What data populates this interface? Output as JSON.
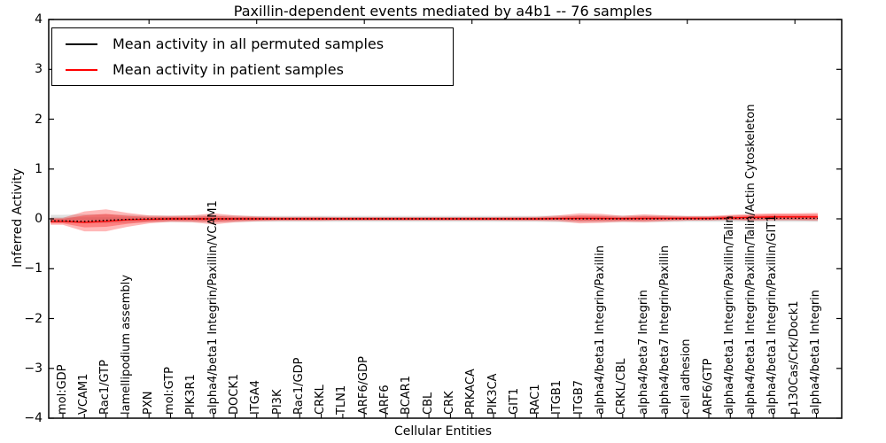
{
  "title": "Paxillin-dependent events mediated by a4b1 -- 76 samples",
  "axes": {
    "ylabel": "Inferred Activity",
    "xlabel": "Cellular Entities",
    "ylim": [
      -4,
      4
    ],
    "yticks": [
      {
        "label": "4",
        "v": 4
      },
      {
        "label": "3",
        "v": 3
      },
      {
        "label": "2",
        "v": 2
      },
      {
        "label": "1",
        "v": 1
      },
      {
        "label": "0",
        "v": 0
      },
      {
        "label": "−1",
        "v": -1
      },
      {
        "label": "−2",
        "v": -2
      },
      {
        "label": "−3",
        "v": -3
      },
      {
        "label": "−4",
        "v": -4
      }
    ]
  },
  "legend": {
    "items": [
      {
        "label": "Mean activity in all permuted samples",
        "color": "#000000"
      },
      {
        "label": "Mean activity in patient samples",
        "color": "#ff0000"
      }
    ]
  },
  "colors": {
    "permuted_line": "#000000",
    "patient_line": "#ff0000",
    "patient_band": "#ff0000",
    "permuted_band": "#bbbbbb",
    "spine": "#000000"
  },
  "chart_data": {
    "type": "line",
    "title": "Paxillin-dependent events mediated by a4b1 -- 76 samples",
    "xlabel": "Cellular Entities",
    "ylabel": "Inferred Activity",
    "ylim": [
      -4,
      4
    ],
    "legend_position": "upper left",
    "categories": [
      "mol:GDP",
      "VCAM1",
      "Rac1/GTP",
      "lamellipodium assembly",
      "PXN",
      "mol:GTP",
      "PIK3R1",
      "alpha4/beta1 Integrin/Paxillin/VCAM1",
      "DOCK1",
      "ITGA4",
      "PI3K",
      "Rac1/GDP",
      "CRKL",
      "TLN1",
      "ARF6/GDP",
      "ARF6",
      "BCAR1",
      "CBL",
      "CRK",
      "PRKACA",
      "PIK3CA",
      "GIT1",
      "RAC1",
      "ITGB1",
      "ITGB7",
      "alpha4/beta1 Integrin/Paxillin",
      "CRKL/CBL",
      "alpha4/beta7 Integrin",
      "alpha4/beta7 Integrin/Paxillin",
      "cell adhesion",
      "ARF6/GTP",
      "alpha4/beta1 Integrin/Paxillin/Talin",
      "alpha4/beta1 Integrin/Paxillin/Talin/Actin Cytoskeleton",
      "alpha4/beta1 Integrin/Paxillin/GIT1",
      "p130Cas/Crk/Dock1",
      "alpha4/beta1 Integrin"
    ],
    "series": [
      {
        "name": "Mean activity in all permuted samples",
        "values": [
          -0.04,
          -0.05,
          -0.03,
          -0.01,
          0,
          0,
          0,
          0,
          0,
          0,
          0,
          0,
          0,
          0,
          0,
          0,
          0,
          0,
          0,
          0,
          0,
          0,
          0,
          0,
          0,
          0,
          0,
          0,
          0,
          0,
          0,
          0.01,
          0.01,
          0.01,
          0.01,
          0.01
        ]
      },
      {
        "name": "Mean activity in patient samples",
        "values": [
          -0.05,
          -0.07,
          -0.05,
          -0.02,
          -0.01,
          0,
          0,
          0,
          0,
          0,
          0,
          0,
          0,
          0,
          0,
          0,
          0,
          0,
          0,
          0,
          0,
          0,
          0,
          0.005,
          0.01,
          0.01,
          0.005,
          0.01,
          0.01,
          0.01,
          0.01,
          0.02,
          0.03,
          0.04,
          0.04,
          0.04
        ]
      }
    ],
    "bands": {
      "patient_outer_upper": [
        0.02,
        0.15,
        0.19,
        0.12,
        0.07,
        0.06,
        0.07,
        0.11,
        0.07,
        0.05,
        0.04,
        0.04,
        0.04,
        0.035,
        0.035,
        0.035,
        0.035,
        0.035,
        0.035,
        0.035,
        0.035,
        0.04,
        0.04,
        0.07,
        0.11,
        0.1,
        0.06,
        0.09,
        0.07,
        0.055,
        0.055,
        0.08,
        0.1,
        0.11,
        0.11,
        0.12
      ],
      "patient_outer_lower": [
        -0.12,
        -0.25,
        -0.25,
        -0.16,
        -0.09,
        -0.06,
        -0.07,
        -0.11,
        -0.07,
        -0.05,
        -0.04,
        -0.04,
        -0.04,
        -0.035,
        -0.035,
        -0.035,
        -0.035,
        -0.035,
        -0.035,
        -0.035,
        -0.035,
        -0.04,
        -0.04,
        -0.05,
        -0.09,
        -0.08,
        -0.06,
        -0.07,
        -0.05,
        -0.035,
        -0.035,
        -0.02,
        -0.04,
        -0.03,
        -0.03,
        -0.04
      ],
      "patient_inner_upper": [
        0.0,
        0.07,
        0.1,
        0.06,
        0.04,
        0.04,
        0.04,
        0.06,
        0.04,
        0.03,
        0.025,
        0.025,
        0.025,
        0.02,
        0.02,
        0.02,
        0.02,
        0.02,
        0.02,
        0.02,
        0.02,
        0.02,
        0.025,
        0.04,
        0.065,
        0.06,
        0.035,
        0.055,
        0.045,
        0.04,
        0.04,
        0.06,
        0.075,
        0.09,
        0.09,
        0.09
      ],
      "patient_inner_lower": [
        -0.09,
        -0.17,
        -0.16,
        -0.1,
        -0.06,
        -0.04,
        -0.04,
        -0.06,
        -0.04,
        -0.03,
        -0.025,
        -0.025,
        -0.025,
        -0.02,
        -0.02,
        -0.02,
        -0.02,
        -0.02,
        -0.02,
        -0.02,
        -0.02,
        -0.02,
        -0.025,
        -0.02,
        -0.045,
        -0.04,
        -0.035,
        -0.035,
        -0.025,
        -0.02,
        -0.02,
        -0.02,
        -0.015,
        -0.01,
        -0.01,
        -0.01
      ],
      "permuted_outer_upper": [
        0.08,
        0.09,
        0.09,
        0.08,
        0.065,
        0.065,
        0.065,
        0.07,
        0.065,
        0.06,
        0.06,
        0.06,
        0.06,
        0.06,
        0.06,
        0.06,
        0.06,
        0.06,
        0.06,
        0.06,
        0.06,
        0.06,
        0.06,
        0.065,
        0.065,
        0.065,
        0.065,
        0.065,
        0.065,
        0.06,
        0.06,
        0.06,
        0.06,
        0.06,
        0.06,
        0.06
      ],
      "permuted_outer_lower": [
        -0.08,
        -0.09,
        -0.09,
        -0.08,
        -0.065,
        -0.065,
        -0.065,
        -0.07,
        -0.065,
        -0.06,
        -0.06,
        -0.06,
        -0.06,
        -0.06,
        -0.06,
        -0.06,
        -0.06,
        -0.06,
        -0.06,
        -0.06,
        -0.06,
        -0.06,
        -0.06,
        -0.065,
        -0.065,
        -0.065,
        -0.065,
        -0.065,
        -0.065,
        -0.06,
        -0.06,
        -0.06,
        -0.06,
        -0.06,
        -0.06,
        -0.06
      ],
      "permuted_inner_upper": [
        0.03,
        0.03,
        0.03,
        0.03,
        0.03,
        0.03,
        0.03,
        0.03,
        0.03,
        0.03,
        0.03,
        0.03,
        0.03,
        0.03,
        0.03,
        0.03,
        0.03,
        0.03,
        0.03,
        0.03,
        0.03,
        0.03,
        0.03,
        0.03,
        0.03,
        0.03,
        0.03,
        0.03,
        0.03,
        0.03,
        0.03,
        0.03,
        0.03,
        0.03,
        0.03,
        0.03
      ],
      "permuted_inner_lower": [
        -0.03,
        -0.03,
        -0.03,
        -0.03,
        -0.03,
        -0.03,
        -0.03,
        -0.03,
        -0.03,
        -0.03,
        -0.03,
        -0.03,
        -0.03,
        -0.03,
        -0.03,
        -0.03,
        -0.03,
        -0.03,
        -0.03,
        -0.03,
        -0.03,
        -0.03,
        -0.03,
        -0.03,
        -0.03,
        -0.03,
        -0.03,
        -0.03,
        -0.03,
        -0.03,
        -0.03,
        -0.03,
        -0.03,
        -0.03,
        -0.03,
        -0.03
      ]
    }
  }
}
